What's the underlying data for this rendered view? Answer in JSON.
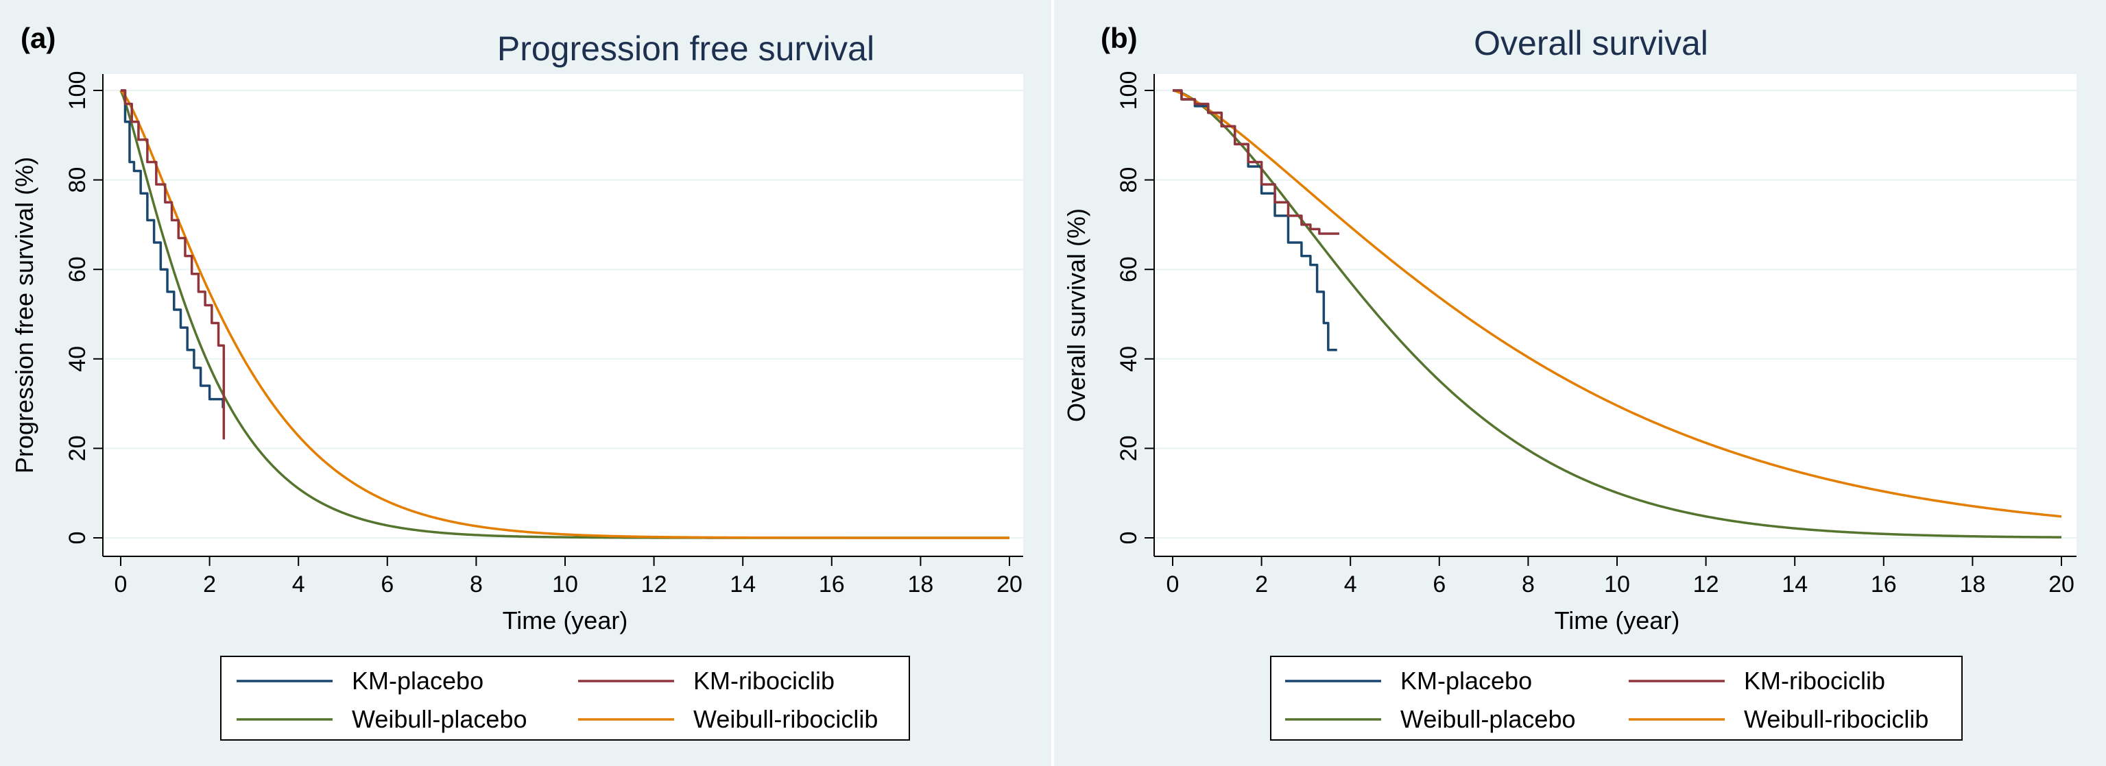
{
  "chart_data": [
    {
      "panel": "(a)",
      "type": "line",
      "title": "Progression free survival",
      "xlabel": "Time (year)",
      "ylabel": "Progression free survival (%)",
      "xlim": [
        0,
        20
      ],
      "ylim": [
        0,
        100
      ],
      "xticks": [
        0,
        2,
        4,
        6,
        8,
        10,
        12,
        14,
        16,
        18,
        20
      ],
      "yticks": [
        0,
        20,
        40,
        60,
        80,
        100
      ],
      "grid": true,
      "legend_position": "bottom",
      "series": [
        {
          "name": "KM-placebo",
          "color": "#1a476f",
          "style": "step",
          "x": [
            0,
            0.1,
            0.2,
            0.3,
            0.45,
            0.6,
            0.75,
            0.9,
            1.05,
            1.2,
            1.35,
            1.5,
            1.65,
            1.8,
            2.0,
            2.3
          ],
          "y": [
            100,
            93,
            84,
            82,
            77,
            71,
            66,
            60,
            55,
            51,
            47,
            42,
            38,
            34,
            31,
            29
          ]
        },
        {
          "name": "KM-ribociclib",
          "color": "#90353b",
          "style": "step",
          "x": [
            0,
            0.1,
            0.25,
            0.4,
            0.6,
            0.8,
            1.0,
            1.15,
            1.3,
            1.45,
            1.6,
            1.75,
            1.9,
            2.05,
            2.2,
            2.32
          ],
          "y": [
            100,
            97,
            93,
            89,
            84,
            79,
            75,
            71,
            67,
            63,
            59,
            55,
            52,
            48,
            43,
            22
          ]
        },
        {
          "name": "Weibull-placebo",
          "color": "#55752f",
          "style": "weibull",
          "scale": 2.07,
          "shape": 1.2,
          "xmax": 20
        },
        {
          "name": "Weibull-ribociclib",
          "color": "#e37e00",
          "style": "weibull",
          "scale": 2.96,
          "shape": 1.3,
          "xmax": 20
        }
      ]
    },
    {
      "panel": "(b)",
      "type": "line",
      "title": "Overall survival",
      "xlabel": "Time (year)",
      "ylabel": "Overall survival (%)",
      "xlim": [
        0,
        20
      ],
      "ylim": [
        0,
        100
      ],
      "xticks": [
        0,
        2,
        4,
        6,
        8,
        10,
        12,
        14,
        16,
        18,
        20
      ],
      "yticks": [
        0,
        20,
        40,
        60,
        80,
        100
      ],
      "grid": true,
      "legend_position": "bottom",
      "series": [
        {
          "name": "KM-placebo",
          "color": "#1a476f",
          "style": "step",
          "x": [
            0,
            0.2,
            0.5,
            0.8,
            1.1,
            1.4,
            1.7,
            2.0,
            2.3,
            2.6,
            2.9,
            3.1,
            3.25,
            3.4,
            3.5,
            3.7
          ],
          "y": [
            100,
            98,
            96.5,
            95,
            92,
            88,
            83,
            77,
            72,
            66,
            63,
            61,
            55,
            48,
            42,
            42
          ]
        },
        {
          "name": "KM-ribociclib",
          "color": "#90353b",
          "style": "step",
          "x": [
            0,
            0.2,
            0.5,
            0.8,
            1.1,
            1.4,
            1.7,
            2.0,
            2.3,
            2.6,
            2.9,
            3.1,
            3.3,
            3.75
          ],
          "y": [
            100,
            98,
            97,
            95,
            92,
            88,
            84,
            79,
            75,
            72,
            70,
            69,
            68,
            68
          ]
        },
        {
          "name": "Weibull-placebo",
          "color": "#55752f",
          "style": "weibull",
          "scale": 5.83,
          "shape": 1.54,
          "xmax": 20
        },
        {
          "name": "Weibull-ribociclib",
          "color": "#e37e00",
          "style": "weibull",
          "scale": 8.61,
          "shape": 1.32,
          "xmax": 20
        }
      ]
    }
  ]
}
